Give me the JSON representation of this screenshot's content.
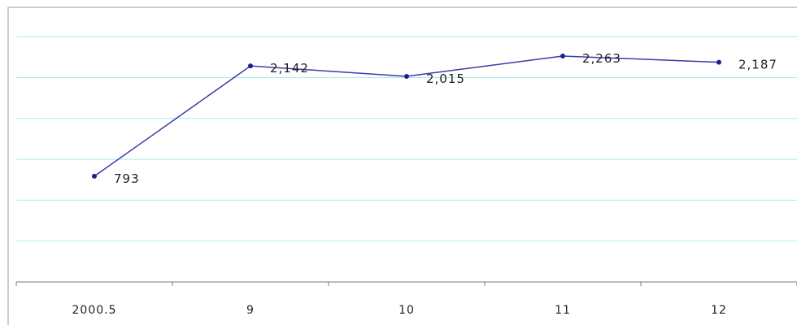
{
  "chart_data": {
    "type": "line",
    "categories": [
      "2000.5",
      "9",
      "10",
      "11",
      "12"
    ],
    "series": [
      {
        "values": [
          793,
          2142,
          2015,
          2263,
          2187
        ]
      }
    ],
    "data_labels": [
      "793",
      "2,142",
      "2,015",
      "2,263",
      "2,187"
    ],
    "ylim": [
      -500,
      2750
    ],
    "y_grid_step": 500,
    "grid": true,
    "legend": "none",
    "title": "",
    "xlabel": "",
    "ylabel": "",
    "colors": {
      "line": "#3a3aa8",
      "marker": "#1f1f8c",
      "grid": "#9ff0f0",
      "axis": "#7a7a7a",
      "frame": "#9a9a9a"
    }
  }
}
